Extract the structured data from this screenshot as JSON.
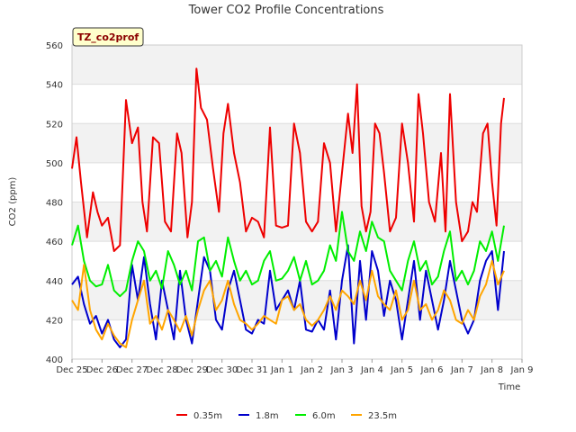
{
  "chart_data": {
    "type": "line",
    "title": "Tower CO2 Profile Concentrations",
    "tag": "TZ_co2prof",
    "xlabel": "Time",
    "ylabel": "CO2 (ppm)",
    "ylim": [
      400,
      560
    ],
    "yticks": [
      400,
      420,
      440,
      460,
      480,
      500,
      520,
      540,
      560
    ],
    "xlim": [
      0,
      15
    ],
    "xticks": [
      {
        "x": 0,
        "label": "Dec 25"
      },
      {
        "x": 1,
        "label": "Dec 26"
      },
      {
        "x": 2,
        "label": "Dec 27"
      },
      {
        "x": 3,
        "label": "Dec 28"
      },
      {
        "x": 4,
        "label": "Dec 29"
      },
      {
        "x": 5,
        "label": "Dec 30"
      },
      {
        "x": 6,
        "label": "Dec 31"
      },
      {
        "x": 7,
        "label": "Jan 1"
      },
      {
        "x": 8,
        "label": "Jan 2"
      },
      {
        "x": 9,
        "label": "Jan 3"
      },
      {
        "x": 10,
        "label": "Jan 4"
      },
      {
        "x": 11,
        "label": "Jan 5"
      },
      {
        "x": 12,
        "label": "Jan 6"
      },
      {
        "x": 13,
        "label": "Jan 7"
      },
      {
        "x": 14,
        "label": "Jan 8"
      },
      {
        "x": 15,
        "label": "Jan 9"
      }
    ],
    "grid": true,
    "legend_position": "bottom",
    "series": [
      {
        "name": "0.35m",
        "color": "#ee0000",
        "x": [
          0.0,
          0.15,
          0.3,
          0.5,
          0.7,
          0.85,
          1.0,
          1.2,
          1.4,
          1.6,
          1.8,
          2.0,
          2.2,
          2.35,
          2.5,
          2.7,
          2.9,
          3.1,
          3.3,
          3.5,
          3.65,
          3.85,
          4.0,
          4.15,
          4.3,
          4.5,
          4.7,
          4.9,
          5.05,
          5.2,
          5.4,
          5.6,
          5.8,
          6.0,
          6.2,
          6.4,
          6.6,
          6.8,
          7.0,
          7.2,
          7.4,
          7.6,
          7.8,
          8.0,
          8.2,
          8.4,
          8.6,
          8.8,
          9.0,
          9.2,
          9.35,
          9.5,
          9.65,
          9.8,
          9.95,
          10.1,
          10.25,
          10.4,
          10.6,
          10.8,
          11.0,
          11.2,
          11.4,
          11.55,
          11.7,
          11.9,
          12.1,
          12.3,
          12.45,
          12.6,
          12.8,
          13.0,
          13.2,
          13.35,
          13.5,
          13.7,
          13.85,
          14.0,
          14.15,
          14.3,
          14.4
        ],
        "y": [
          497,
          513,
          490,
          462,
          485,
          475,
          468,
          472,
          455,
          458,
          532,
          510,
          518,
          480,
          465,
          513,
          510,
          470,
          465,
          515,
          505,
          462,
          480,
          548,
          528,
          522,
          497,
          475,
          515,
          530,
          505,
          490,
          465,
          472,
          470,
          462,
          518,
          468,
          467,
          468,
          520,
          505,
          470,
          465,
          470,
          510,
          500,
          465,
          495,
          525,
          505,
          540,
          478,
          465,
          475,
          520,
          515,
          495,
          465,
          472,
          520,
          500,
          470,
          535,
          515,
          480,
          470,
          505,
          465,
          535,
          480,
          460,
          465,
          480,
          475,
          515,
          520,
          490,
          468,
          520,
          533
        ]
      },
      {
        "name": "1.8m",
        "color": "#0000cc",
        "x": [
          0.0,
          0.2,
          0.4,
          0.6,
          0.8,
          1.0,
          1.2,
          1.4,
          1.6,
          1.8,
          2.0,
          2.2,
          2.4,
          2.6,
          2.8,
          3.0,
          3.2,
          3.4,
          3.6,
          3.8,
          4.0,
          4.2,
          4.4,
          4.6,
          4.8,
          5.0,
          5.2,
          5.4,
          5.6,
          5.8,
          6.0,
          6.2,
          6.4,
          6.6,
          6.8,
          7.0,
          7.2,
          7.4,
          7.6,
          7.8,
          8.0,
          8.2,
          8.4,
          8.6,
          8.8,
          9.0,
          9.2,
          9.4,
          9.6,
          9.8,
          10.0,
          10.2,
          10.4,
          10.6,
          10.8,
          11.0,
          11.2,
          11.4,
          11.6,
          11.8,
          12.0,
          12.2,
          12.4,
          12.6,
          12.8,
          13.0,
          13.2,
          13.4,
          13.6,
          13.8,
          14.0,
          14.2,
          14.4
        ],
        "y": [
          438,
          442,
          428,
          418,
          422,
          413,
          420,
          410,
          406,
          410,
          448,
          430,
          452,
          428,
          410,
          440,
          425,
          410,
          445,
          420,
          408,
          430,
          452,
          445,
          420,
          415,
          435,
          445,
          430,
          415,
          413,
          420,
          418,
          445,
          425,
          430,
          435,
          425,
          440,
          415,
          414,
          420,
          415,
          435,
          410,
          440,
          458,
          408,
          450,
          420,
          455,
          445,
          422,
          440,
          430,
          410,
          430,
          450,
          420,
          445,
          430,
          415,
          430,
          450,
          435,
          420,
          413,
          420,
          440,
          450,
          455,
          425,
          455
        ]
      },
      {
        "name": "6.0m",
        "color": "#00ee00",
        "x": [
          0.0,
          0.2,
          0.4,
          0.6,
          0.8,
          1.0,
          1.2,
          1.4,
          1.6,
          1.8,
          2.0,
          2.2,
          2.4,
          2.6,
          2.8,
          3.0,
          3.2,
          3.4,
          3.6,
          3.8,
          4.0,
          4.2,
          4.4,
          4.6,
          4.8,
          5.0,
          5.2,
          5.4,
          5.6,
          5.8,
          6.0,
          6.2,
          6.4,
          6.6,
          6.8,
          7.0,
          7.2,
          7.4,
          7.6,
          7.8,
          8.0,
          8.2,
          8.4,
          8.6,
          8.8,
          9.0,
          9.2,
          9.4,
          9.6,
          9.8,
          10.0,
          10.2,
          10.4,
          10.6,
          10.8,
          11.0,
          11.2,
          11.4,
          11.6,
          11.8,
          12.0,
          12.2,
          12.4,
          12.6,
          12.8,
          13.0,
          13.2,
          13.4,
          13.6,
          13.8,
          14.0,
          14.2,
          14.4
        ],
        "y": [
          458,
          468,
          450,
          440,
          437,
          438,
          448,
          435,
          432,
          435,
          450,
          460,
          455,
          440,
          445,
          436,
          455,
          448,
          438,
          445,
          435,
          460,
          462,
          445,
          450,
          442,
          462,
          450,
          440,
          445,
          438,
          440,
          450,
          455,
          440,
          441,
          445,
          452,
          440,
          450,
          438,
          440,
          445,
          458,
          450,
          475,
          455,
          450,
          465,
          455,
          470,
          462,
          460,
          445,
          440,
          435,
          450,
          460,
          445,
          450,
          438,
          442,
          455,
          465,
          440,
          445,
          438,
          445,
          460,
          455,
          465,
          450,
          468
        ]
      },
      {
        "name": "23.5m",
        "color": "#ffa500",
        "x": [
          0.0,
          0.2,
          0.4,
          0.6,
          0.8,
          1.0,
          1.2,
          1.4,
          1.6,
          1.8,
          2.0,
          2.2,
          2.4,
          2.6,
          2.8,
          3.0,
          3.2,
          3.4,
          3.6,
          3.8,
          4.0,
          4.2,
          4.4,
          4.6,
          4.8,
          5.0,
          5.2,
          5.4,
          5.6,
          5.8,
          6.0,
          6.2,
          6.4,
          6.6,
          6.8,
          7.0,
          7.2,
          7.4,
          7.6,
          7.8,
          8.0,
          8.2,
          8.4,
          8.6,
          8.8,
          9.0,
          9.2,
          9.4,
          9.6,
          9.8,
          10.0,
          10.2,
          10.4,
          10.6,
          10.8,
          11.0,
          11.2,
          11.4,
          11.6,
          11.8,
          12.0,
          12.2,
          12.4,
          12.6,
          12.8,
          13.0,
          13.2,
          13.4,
          13.6,
          13.8,
          14.0,
          14.2,
          14.4
        ],
        "y": [
          430,
          425,
          448,
          425,
          415,
          410,
          418,
          412,
          408,
          406,
          420,
          430,
          440,
          418,
          422,
          415,
          425,
          420,
          414,
          422,
          412,
          425,
          435,
          440,
          425,
          430,
          440,
          428,
          420,
          418,
          415,
          418,
          422,
          420,
          418,
          430,
          432,
          425,
          428,
          420,
          417,
          420,
          425,
          432,
          425,
          435,
          432,
          428,
          440,
          430,
          445,
          432,
          428,
          425,
          435,
          420,
          425,
          440,
          425,
          428,
          420,
          425,
          435,
          430,
          420,
          418,
          425,
          420,
          432,
          438,
          450,
          438,
          445
        ]
      }
    ]
  }
}
